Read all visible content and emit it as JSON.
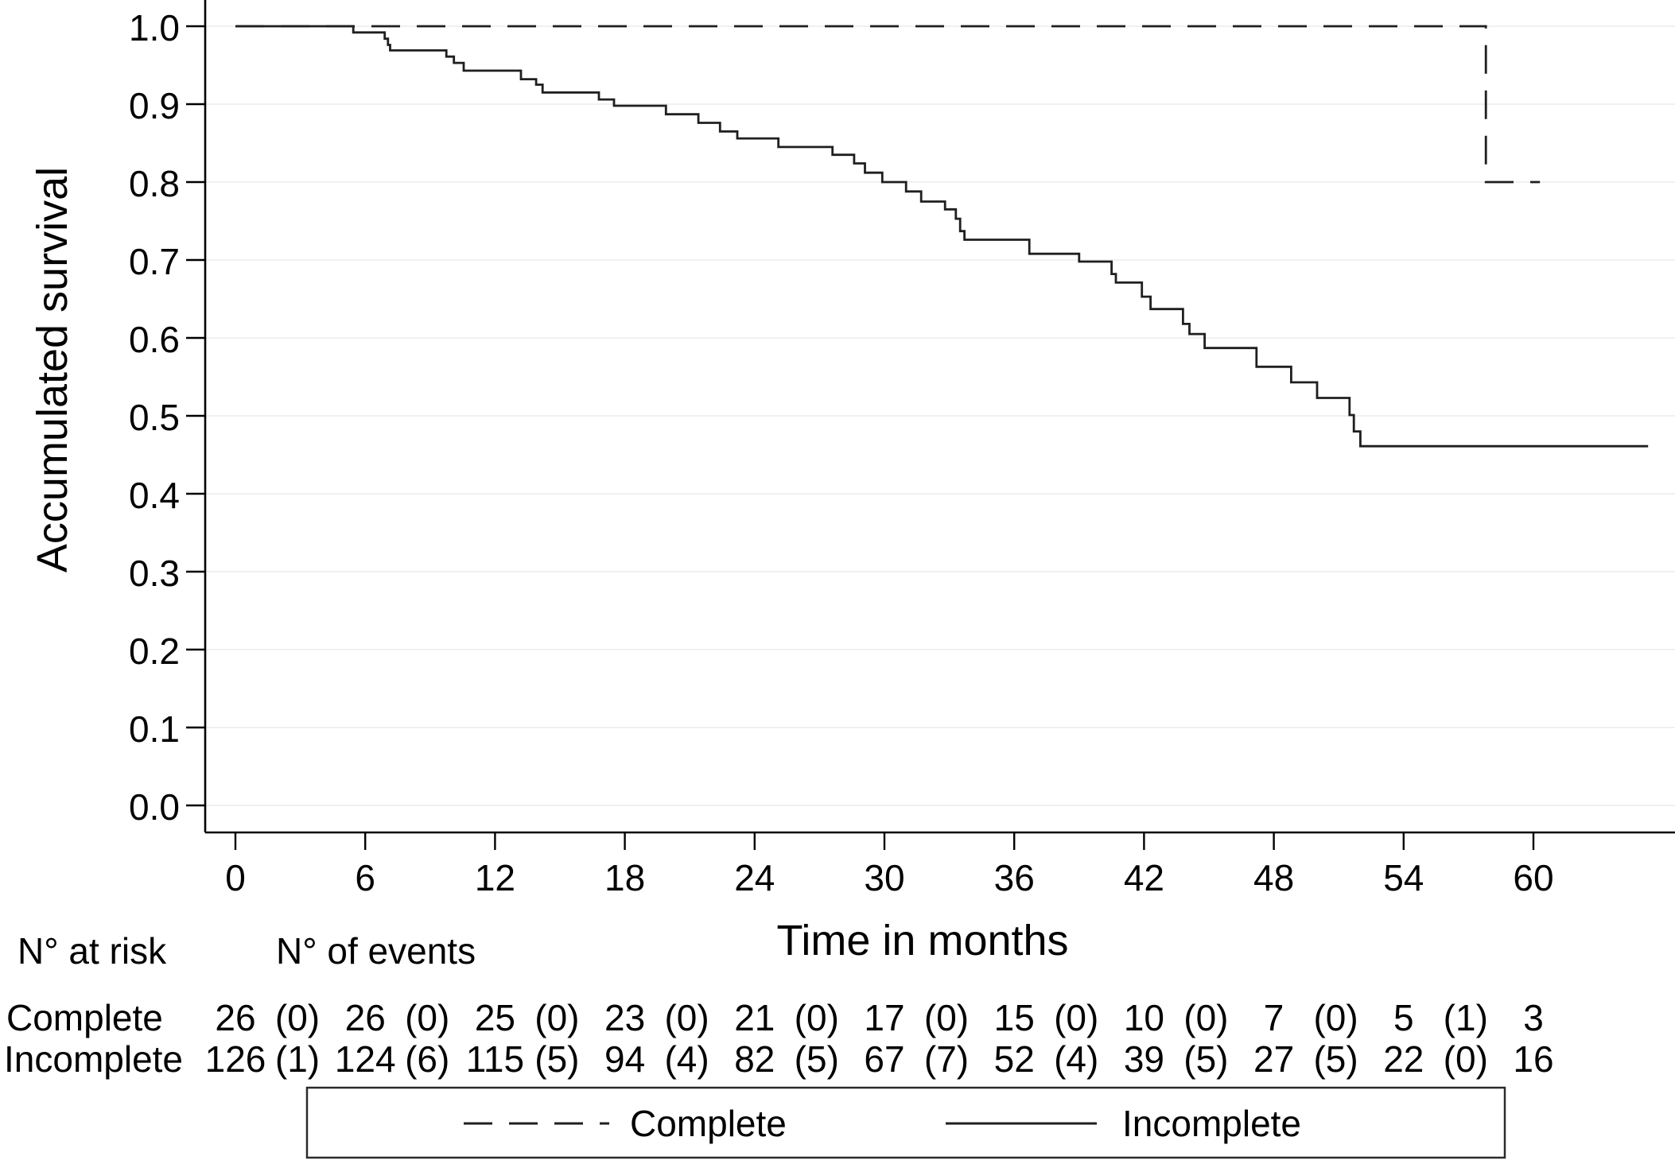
{
  "chart_data": {
    "type": "line",
    "subtype": "kaplan-meier-step",
    "title": "",
    "xlabel": "Time in months",
    "ylabel": "Accumulated survival",
    "xlim": [
      0,
      66.5
    ],
    "ylim": [
      0.0,
      1.0
    ],
    "grid": "horizontal-only",
    "x_ticks": [
      {
        "value": 0,
        "label": "0"
      },
      {
        "value": 6,
        "label": "6"
      },
      {
        "value": 12,
        "label": "12"
      },
      {
        "value": 18,
        "label": "18"
      },
      {
        "value": 24,
        "label": "24"
      },
      {
        "value": 30,
        "label": "30"
      },
      {
        "value": 36,
        "label": "36"
      },
      {
        "value": 42,
        "label": "42"
      },
      {
        "value": 48,
        "label": "48"
      },
      {
        "value": 54,
        "label": "54"
      },
      {
        "value": 60,
        "label": "60"
      }
    ],
    "y_ticks": [
      {
        "value": 0.0,
        "label": "0.0"
      },
      {
        "value": 0.1,
        "label": "0.1"
      },
      {
        "value": 0.2,
        "label": "0.2"
      },
      {
        "value": 0.3,
        "label": "0.3"
      },
      {
        "value": 0.4,
        "label": "0.4"
      },
      {
        "value": 0.5,
        "label": "0.5"
      },
      {
        "value": 0.6,
        "label": "0.6"
      },
      {
        "value": 0.7,
        "label": "0.7"
      },
      {
        "value": 0.8,
        "label": "0.8"
      },
      {
        "value": 0.9,
        "label": "0.9"
      },
      {
        "value": 1.0,
        "label": "1.0"
      }
    ],
    "series": [
      {
        "name": "Complete",
        "style": "dashed",
        "color": "#1f1f1f",
        "steps": [
          [
            0,
            1.0
          ],
          [
            57.8,
            0.8
          ]
        ],
        "end_x": 60.3
      },
      {
        "name": "Incomplete",
        "style": "solid",
        "color": "#1f1f1f",
        "steps": [
          [
            0,
            1.0
          ],
          [
            5.45,
            0.992
          ],
          [
            6.9,
            0.984
          ],
          [
            7.05,
            0.976
          ],
          [
            7.15,
            0.969
          ],
          [
            9.75,
            0.961
          ],
          [
            10.1,
            0.953
          ],
          [
            10.55,
            0.943
          ],
          [
            13.2,
            0.932
          ],
          [
            13.9,
            0.925
          ],
          [
            14.2,
            0.915
          ],
          [
            16.8,
            0.906
          ],
          [
            17.5,
            0.898
          ],
          [
            19.9,
            0.887
          ],
          [
            21.4,
            0.876
          ],
          [
            22.4,
            0.865
          ],
          [
            23.2,
            0.856
          ],
          [
            25.1,
            0.845
          ],
          [
            27.6,
            0.835
          ],
          [
            28.6,
            0.824
          ],
          [
            29.1,
            0.812
          ],
          [
            29.9,
            0.8
          ],
          [
            31.0,
            0.788
          ],
          [
            31.7,
            0.775
          ],
          [
            32.8,
            0.765
          ],
          [
            33.3,
            0.753
          ],
          [
            33.5,
            0.737
          ],
          [
            33.7,
            0.726
          ],
          [
            36.7,
            0.708
          ],
          [
            39.0,
            0.698
          ],
          [
            40.5,
            0.682
          ],
          [
            40.7,
            0.671
          ],
          [
            41.9,
            0.653
          ],
          [
            42.3,
            0.637
          ],
          [
            43.8,
            0.618
          ],
          [
            44.1,
            0.605
          ],
          [
            44.8,
            0.587
          ],
          [
            47.2,
            0.563
          ],
          [
            48.8,
            0.543
          ],
          [
            50.0,
            0.523
          ],
          [
            51.5,
            0.501
          ],
          [
            51.7,
            0.48
          ],
          [
            52.0,
            0.461
          ]
        ],
        "end_x": 65.3
      }
    ]
  },
  "risk_table": {
    "header_at_risk": "N° at risk",
    "header_events": "N° of events",
    "time_points": [
      0,
      6,
      12,
      18,
      24,
      30,
      36,
      42,
      48,
      54,
      60
    ],
    "rows": [
      {
        "label": "Complete",
        "at_risk": [
          26,
          26,
          25,
          23,
          21,
          17,
          15,
          10,
          7,
          5,
          3
        ],
        "events": [
          0,
          0,
          0,
          0,
          0,
          0,
          0,
          0,
          0,
          1
        ]
      },
      {
        "label": "Incomplete",
        "at_risk": [
          126,
          124,
          115,
          94,
          82,
          67,
          52,
          39,
          27,
          22,
          16
        ],
        "events": [
          1,
          6,
          5,
          4,
          5,
          7,
          4,
          5,
          5,
          0
        ]
      }
    ]
  },
  "legend": {
    "items": [
      {
        "label": "Complete",
        "style": "dashed"
      },
      {
        "label": "Incomplete",
        "style": "solid"
      }
    ]
  },
  "colors": {
    "curve": "#1f1f1f",
    "gridline": "#f0f0f0",
    "axis": "#000000",
    "background": "#ffffff"
  }
}
